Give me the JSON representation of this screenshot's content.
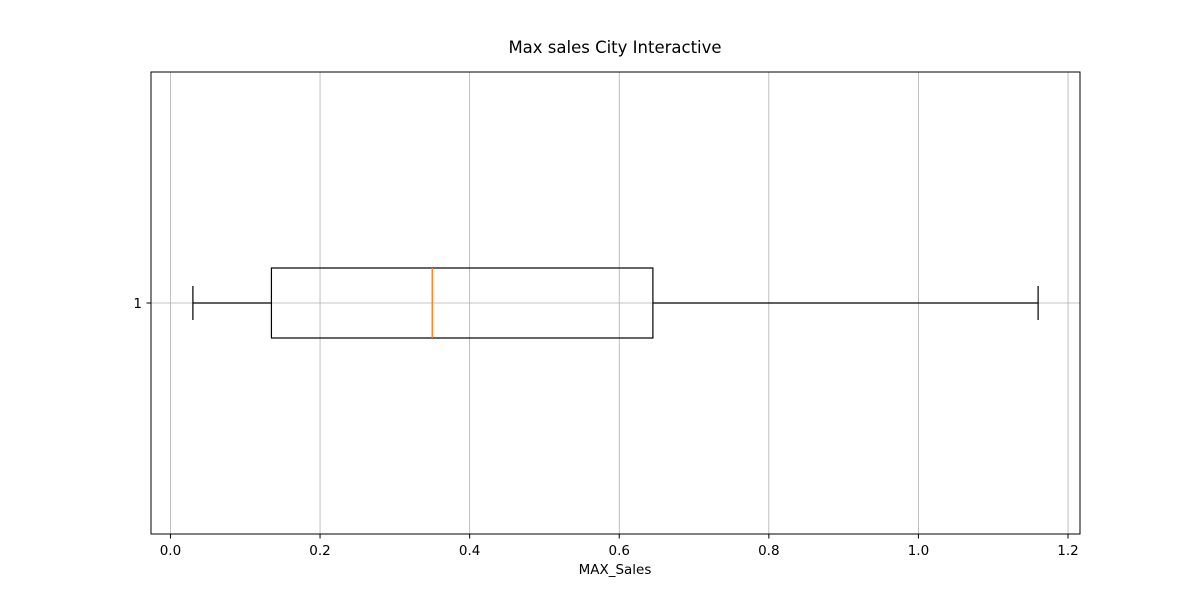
{
  "chart_data": {
    "type": "boxplot",
    "orientation": "horizontal",
    "title": "Max sales City Interactive",
    "xlabel": "MAX_Sales",
    "ylabel": "",
    "xlim": [
      -0.026,
      1.216
    ],
    "grid": true,
    "x_ticks": [
      0.0,
      0.2,
      0.4,
      0.6,
      0.8,
      1.0,
      1.2
    ],
    "x_tick_labels": [
      "0.0",
      "0.2",
      "0.4",
      "0.6",
      "0.8",
      "1.0",
      "1.2"
    ],
    "y_tick_labels": [
      "1"
    ],
    "boxes": [
      {
        "label": "1",
        "whisker_low": 0.03,
        "q1": 0.135,
        "median": 0.35,
        "q3": 0.645,
        "whisker_high": 1.16
      }
    ],
    "colors": {
      "box": "#000000",
      "median": "#ff7f0e",
      "grid": "#b0b0b0"
    }
  }
}
